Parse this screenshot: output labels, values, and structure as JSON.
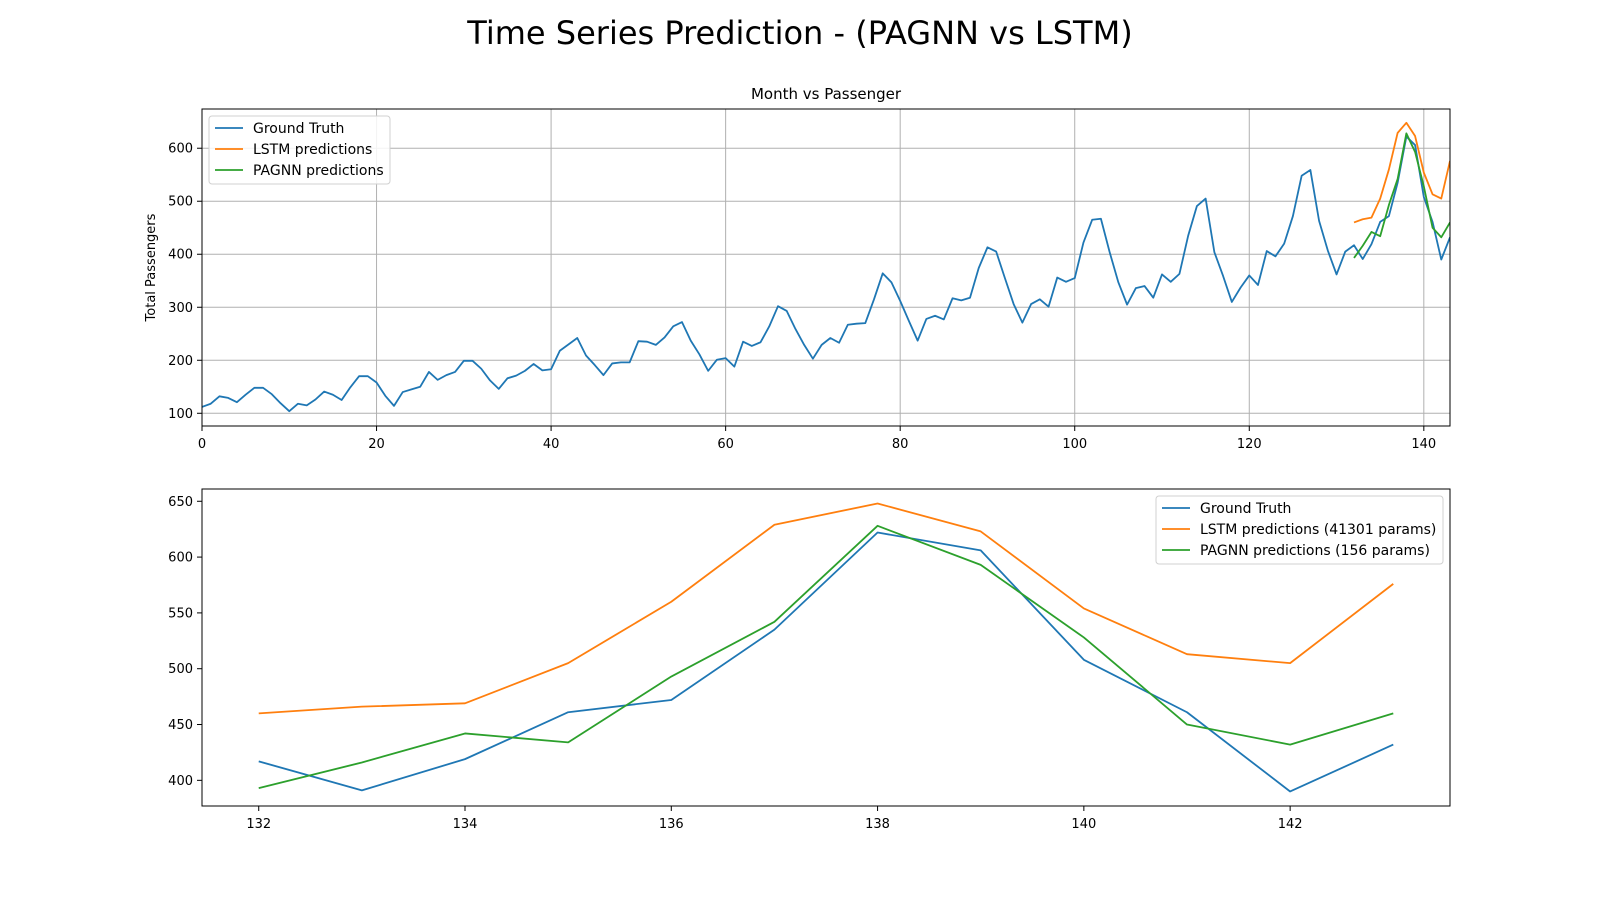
{
  "figure": {
    "suptitle": "Time Series Prediction - (PAGNN vs LSTM)"
  },
  "colors": {
    "ground_truth": "#1f77b4",
    "lstm": "#ff7f0e",
    "pagnn": "#2ca02c",
    "grid": "#b0b0b0"
  },
  "chart_data": [
    {
      "type": "line",
      "title": "Month vs Passenger",
      "xlabel": "",
      "ylabel": "Total Passengers",
      "xlim": [
        0,
        143
      ],
      "ylim": [
        76,
        674
      ],
      "xticks": [
        0,
        20,
        40,
        60,
        80,
        100,
        120,
        140
      ],
      "yticks": [
        100,
        200,
        300,
        400,
        500,
        600
      ],
      "grid": true,
      "legend_position": "upper-left",
      "series": [
        {
          "name": "Ground Truth",
          "color_key": "ground_truth",
          "x_start": 0,
          "values": [
            112,
            118,
            132,
            129,
            121,
            135,
            148,
            148,
            136,
            119,
            104,
            118,
            115,
            126,
            141,
            135,
            125,
            149,
            170,
            170,
            158,
            133,
            114,
            140,
            145,
            150,
            178,
            163,
            172,
            178,
            199,
            199,
            184,
            162,
            146,
            166,
            171,
            180,
            193,
            181,
            183,
            218,
            230,
            242,
            209,
            191,
            172,
            194,
            196,
            196,
            236,
            235,
            229,
            243,
            264,
            272,
            237,
            211,
            180,
            201,
            204,
            188,
            235,
            227,
            234,
            264,
            302,
            293,
            259,
            229,
            203,
            229,
            242,
            233,
            267,
            269,
            270,
            315,
            364,
            347,
            312,
            274,
            237,
            278,
            284,
            277,
            317,
            313,
            318,
            374,
            413,
            405,
            355,
            306,
            271,
            306,
            315,
            301,
            356,
            348,
            355,
            422,
            465,
            467,
            404,
            347,
            305,
            336,
            340,
            318,
            362,
            348,
            363,
            435,
            491,
            505,
            404,
            359,
            310,
            337,
            360,
            342,
            406,
            396,
            420,
            472,
            548,
            559,
            463,
            407,
            362,
            405,
            417,
            391,
            419,
            461,
            472,
            535,
            622,
            606,
            508,
            461,
            390,
            432
          ]
        },
        {
          "name": "LSTM predictions",
          "color_key": "lstm",
          "x_start": 132,
          "values": [
            460,
            466,
            469,
            505,
            560,
            629,
            648,
            623,
            554,
            513,
            505,
            576
          ]
        },
        {
          "name": "PAGNN predictions",
          "color_key": "pagnn",
          "x_start": 132,
          "values": [
            393,
            416,
            442,
            434,
            493,
            542,
            628,
            593,
            528,
            450,
            432,
            460
          ]
        }
      ]
    },
    {
      "type": "line",
      "title": "",
      "xlabel": "",
      "ylabel": "",
      "xlim": [
        131.45,
        143.55
      ],
      "ylim": [
        377,
        661
      ],
      "xticks": [
        132,
        134,
        136,
        138,
        140,
        142
      ],
      "yticks": [
        400,
        450,
        500,
        550,
        600,
        650
      ],
      "grid": false,
      "legend_position": "upper-right",
      "series": [
        {
          "name": "Ground Truth",
          "color_key": "ground_truth",
          "x_start": 132,
          "values": [
            417,
            391,
            419,
            461,
            472,
            535,
            622,
            606,
            508,
            461,
            390,
            432
          ]
        },
        {
          "name": "LSTM predictions (41301 params)",
          "color_key": "lstm",
          "x_start": 132,
          "values": [
            460,
            466,
            469,
            505,
            560,
            629,
            648,
            623,
            554,
            513,
            505,
            576
          ]
        },
        {
          "name": "PAGNN predictions (156 params)",
          "color_key": "pagnn",
          "x_start": 132,
          "values": [
            393,
            416,
            442,
            434,
            493,
            542,
            628,
            593,
            528,
            450,
            432,
            460
          ]
        }
      ]
    }
  ]
}
